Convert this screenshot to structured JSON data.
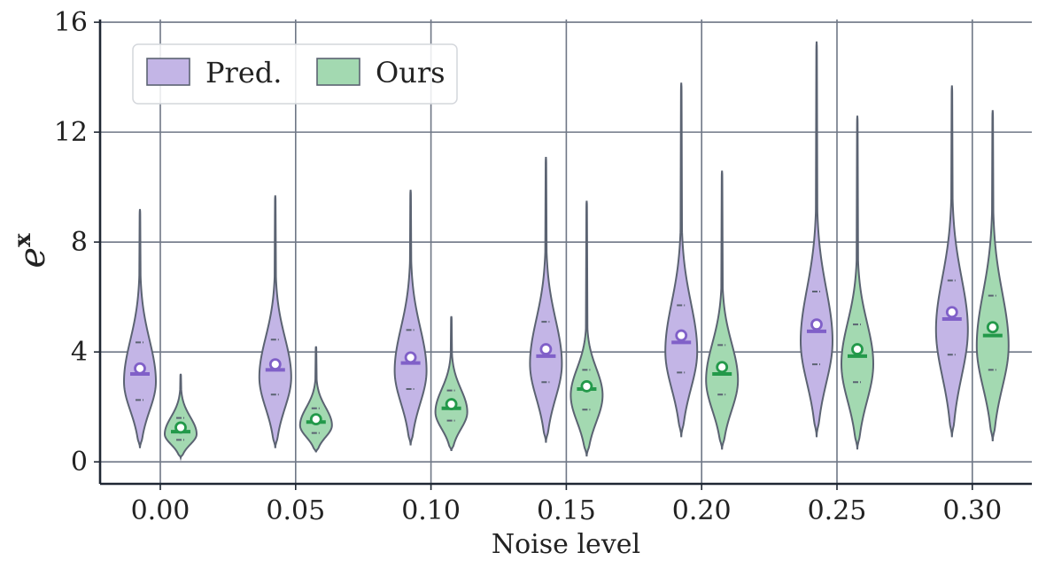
{
  "chart_data": {
    "type": "violin",
    "xlabel": "Noise level",
    "ylabel": "e",
    "ylabel_superscript": "x",
    "ylim": [
      -0.8,
      16.1
    ],
    "yticks": [
      0,
      4,
      8,
      12,
      16
    ],
    "categories": [
      "0.00",
      "0.05",
      "0.10",
      "0.15",
      "0.20",
      "0.25",
      "0.30"
    ],
    "grid": true,
    "legend_position": "top-left",
    "series": [
      {
        "name": "Pred.",
        "color": "#c3b5e6",
        "marker_color": "#8060c8",
        "min": [
          0.5,
          0.5,
          0.6,
          0.7,
          0.9,
          0.9,
          0.9
        ],
        "max": [
          9.2,
          9.7,
          9.9,
          11.1,
          13.8,
          15.3,
          13.7
        ],
        "q1": [
          2.25,
          2.45,
          2.65,
          2.9,
          3.25,
          3.55,
          3.9
        ],
        "median": [
          3.2,
          3.35,
          3.6,
          3.85,
          4.35,
          4.75,
          5.2
        ],
        "q3": [
          4.35,
          4.45,
          4.8,
          5.1,
          5.7,
          6.2,
          6.6
        ],
        "mean": [
          3.4,
          3.55,
          3.8,
          4.1,
          4.6,
          5.0,
          5.45
        ]
      },
      {
        "name": "Ours",
        "color": "#a3d9b1",
        "marker_color": "#23994a",
        "min": [
          0.15,
          0.35,
          0.4,
          0.2,
          0.45,
          0.45,
          0.75
        ],
        "max": [
          3.2,
          4.2,
          5.3,
          9.5,
          10.6,
          12.6,
          12.8
        ],
        "q1": [
          0.8,
          1.05,
          1.5,
          1.9,
          2.45,
          2.9,
          3.35
        ],
        "median": [
          1.1,
          1.45,
          1.95,
          2.65,
          3.2,
          3.85,
          4.6
        ],
        "q3": [
          1.6,
          1.95,
          2.6,
          3.35,
          4.25,
          5.0,
          6.05
        ],
        "mean": [
          1.25,
          1.55,
          2.1,
          2.75,
          3.45,
          4.1,
          4.9
        ]
      }
    ]
  }
}
